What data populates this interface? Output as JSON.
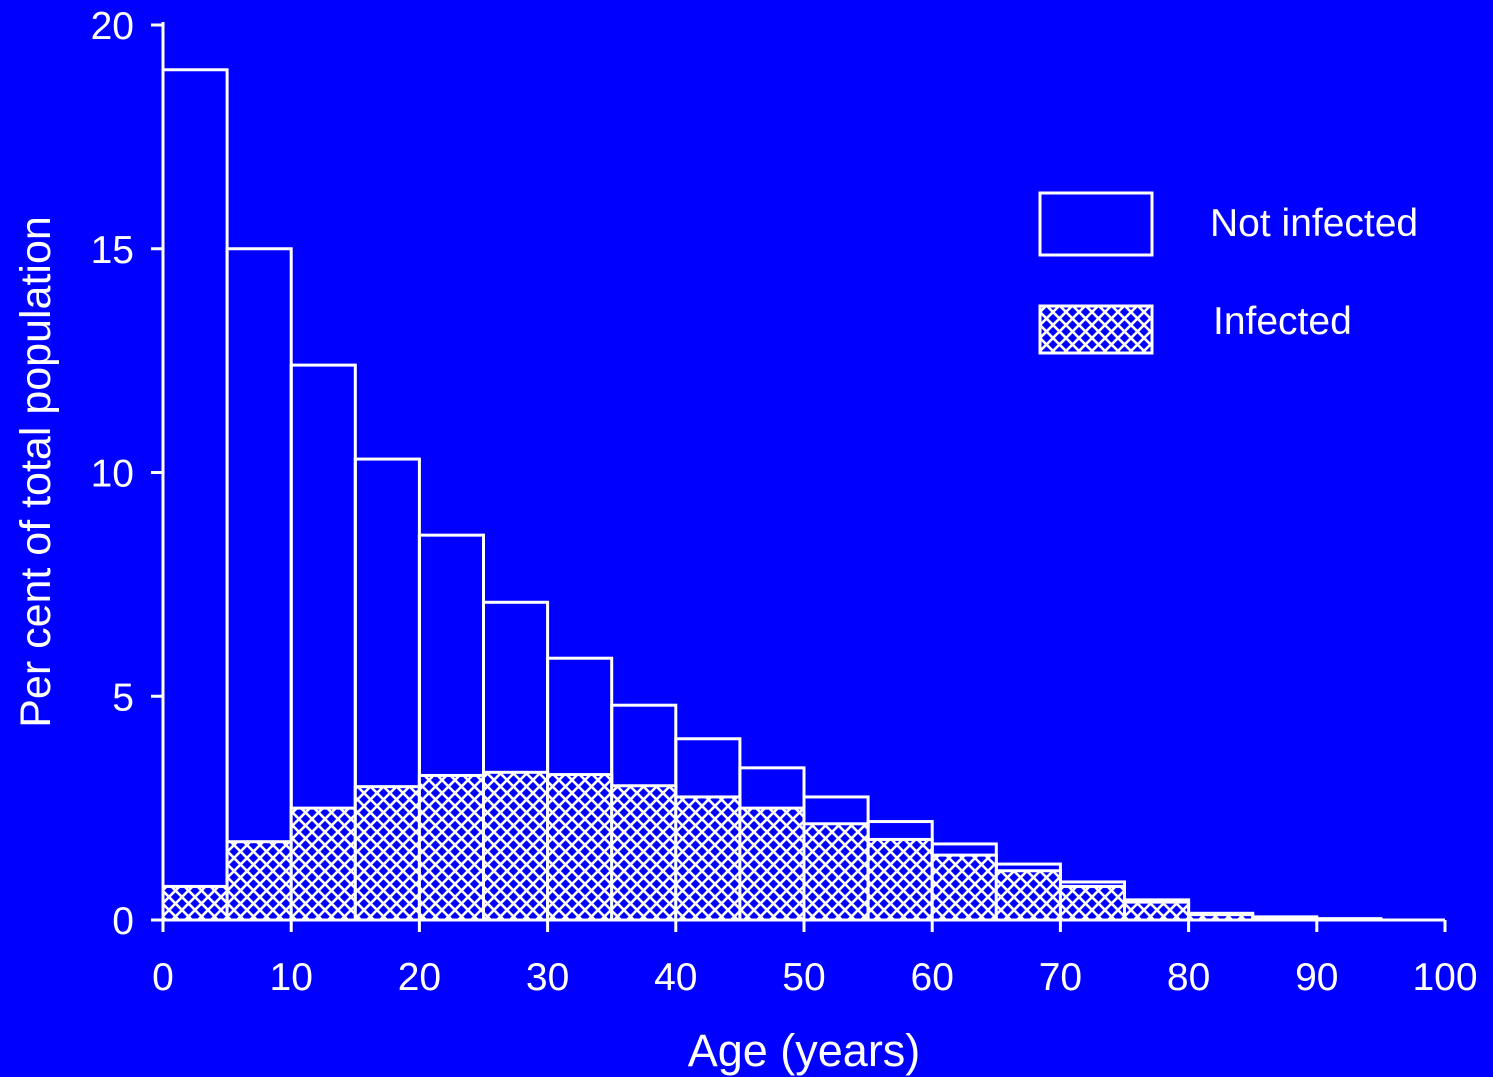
{
  "chart_data": {
    "type": "bar",
    "stacked": true,
    "xlabel": "Age (years)",
    "ylabel": "Per cent of total population",
    "xlim": [
      0,
      100
    ],
    "ylim": [
      0,
      20
    ],
    "xticks": [
      "0",
      "10",
      "20",
      "30",
      "40",
      "50",
      "60",
      "70",
      "80",
      "90",
      "100"
    ],
    "yticks": [
      "0",
      "5",
      "10",
      "15",
      "20"
    ],
    "bin_starts": [
      0,
      5,
      10,
      15,
      20,
      25,
      30,
      35,
      40,
      45,
      50,
      55,
      60,
      65,
      70,
      75,
      80,
      85,
      90
    ],
    "bin_width": 5,
    "totals": [
      19.0,
      15.0,
      12.4,
      10.3,
      8.6,
      7.1,
      5.85,
      4.8,
      4.05,
      3.4,
      2.75,
      2.2,
      1.7,
      1.25,
      0.85,
      0.45,
      0.15,
      0.07,
      0.03
    ],
    "series": [
      {
        "name": "Infected",
        "values": [
          0.75,
          1.75,
          2.5,
          2.98,
          3.23,
          3.3,
          3.25,
          3.0,
          2.75,
          2.5,
          2.15,
          1.8,
          1.45,
          1.1,
          0.75,
          0.4,
          0.12,
          0.05,
          0.02
        ]
      },
      {
        "name": "Not infected",
        "values": [
          18.25,
          13.25,
          9.9,
          7.32,
          5.37,
          3.8,
          2.6,
          1.8,
          1.3,
          0.9,
          0.6,
          0.4,
          0.25,
          0.15,
          0.1,
          0.05,
          0.03,
          0.02,
          0.01
        ]
      }
    ],
    "legend": {
      "position": "top-right",
      "items": [
        {
          "label": "Not infected",
          "style": "open"
        },
        {
          "label": "Infected",
          "style": "crosshatch"
        }
      ]
    },
    "colors": {
      "background": "#0000ff",
      "foreground": "#ffffff"
    },
    "grid": false
  }
}
